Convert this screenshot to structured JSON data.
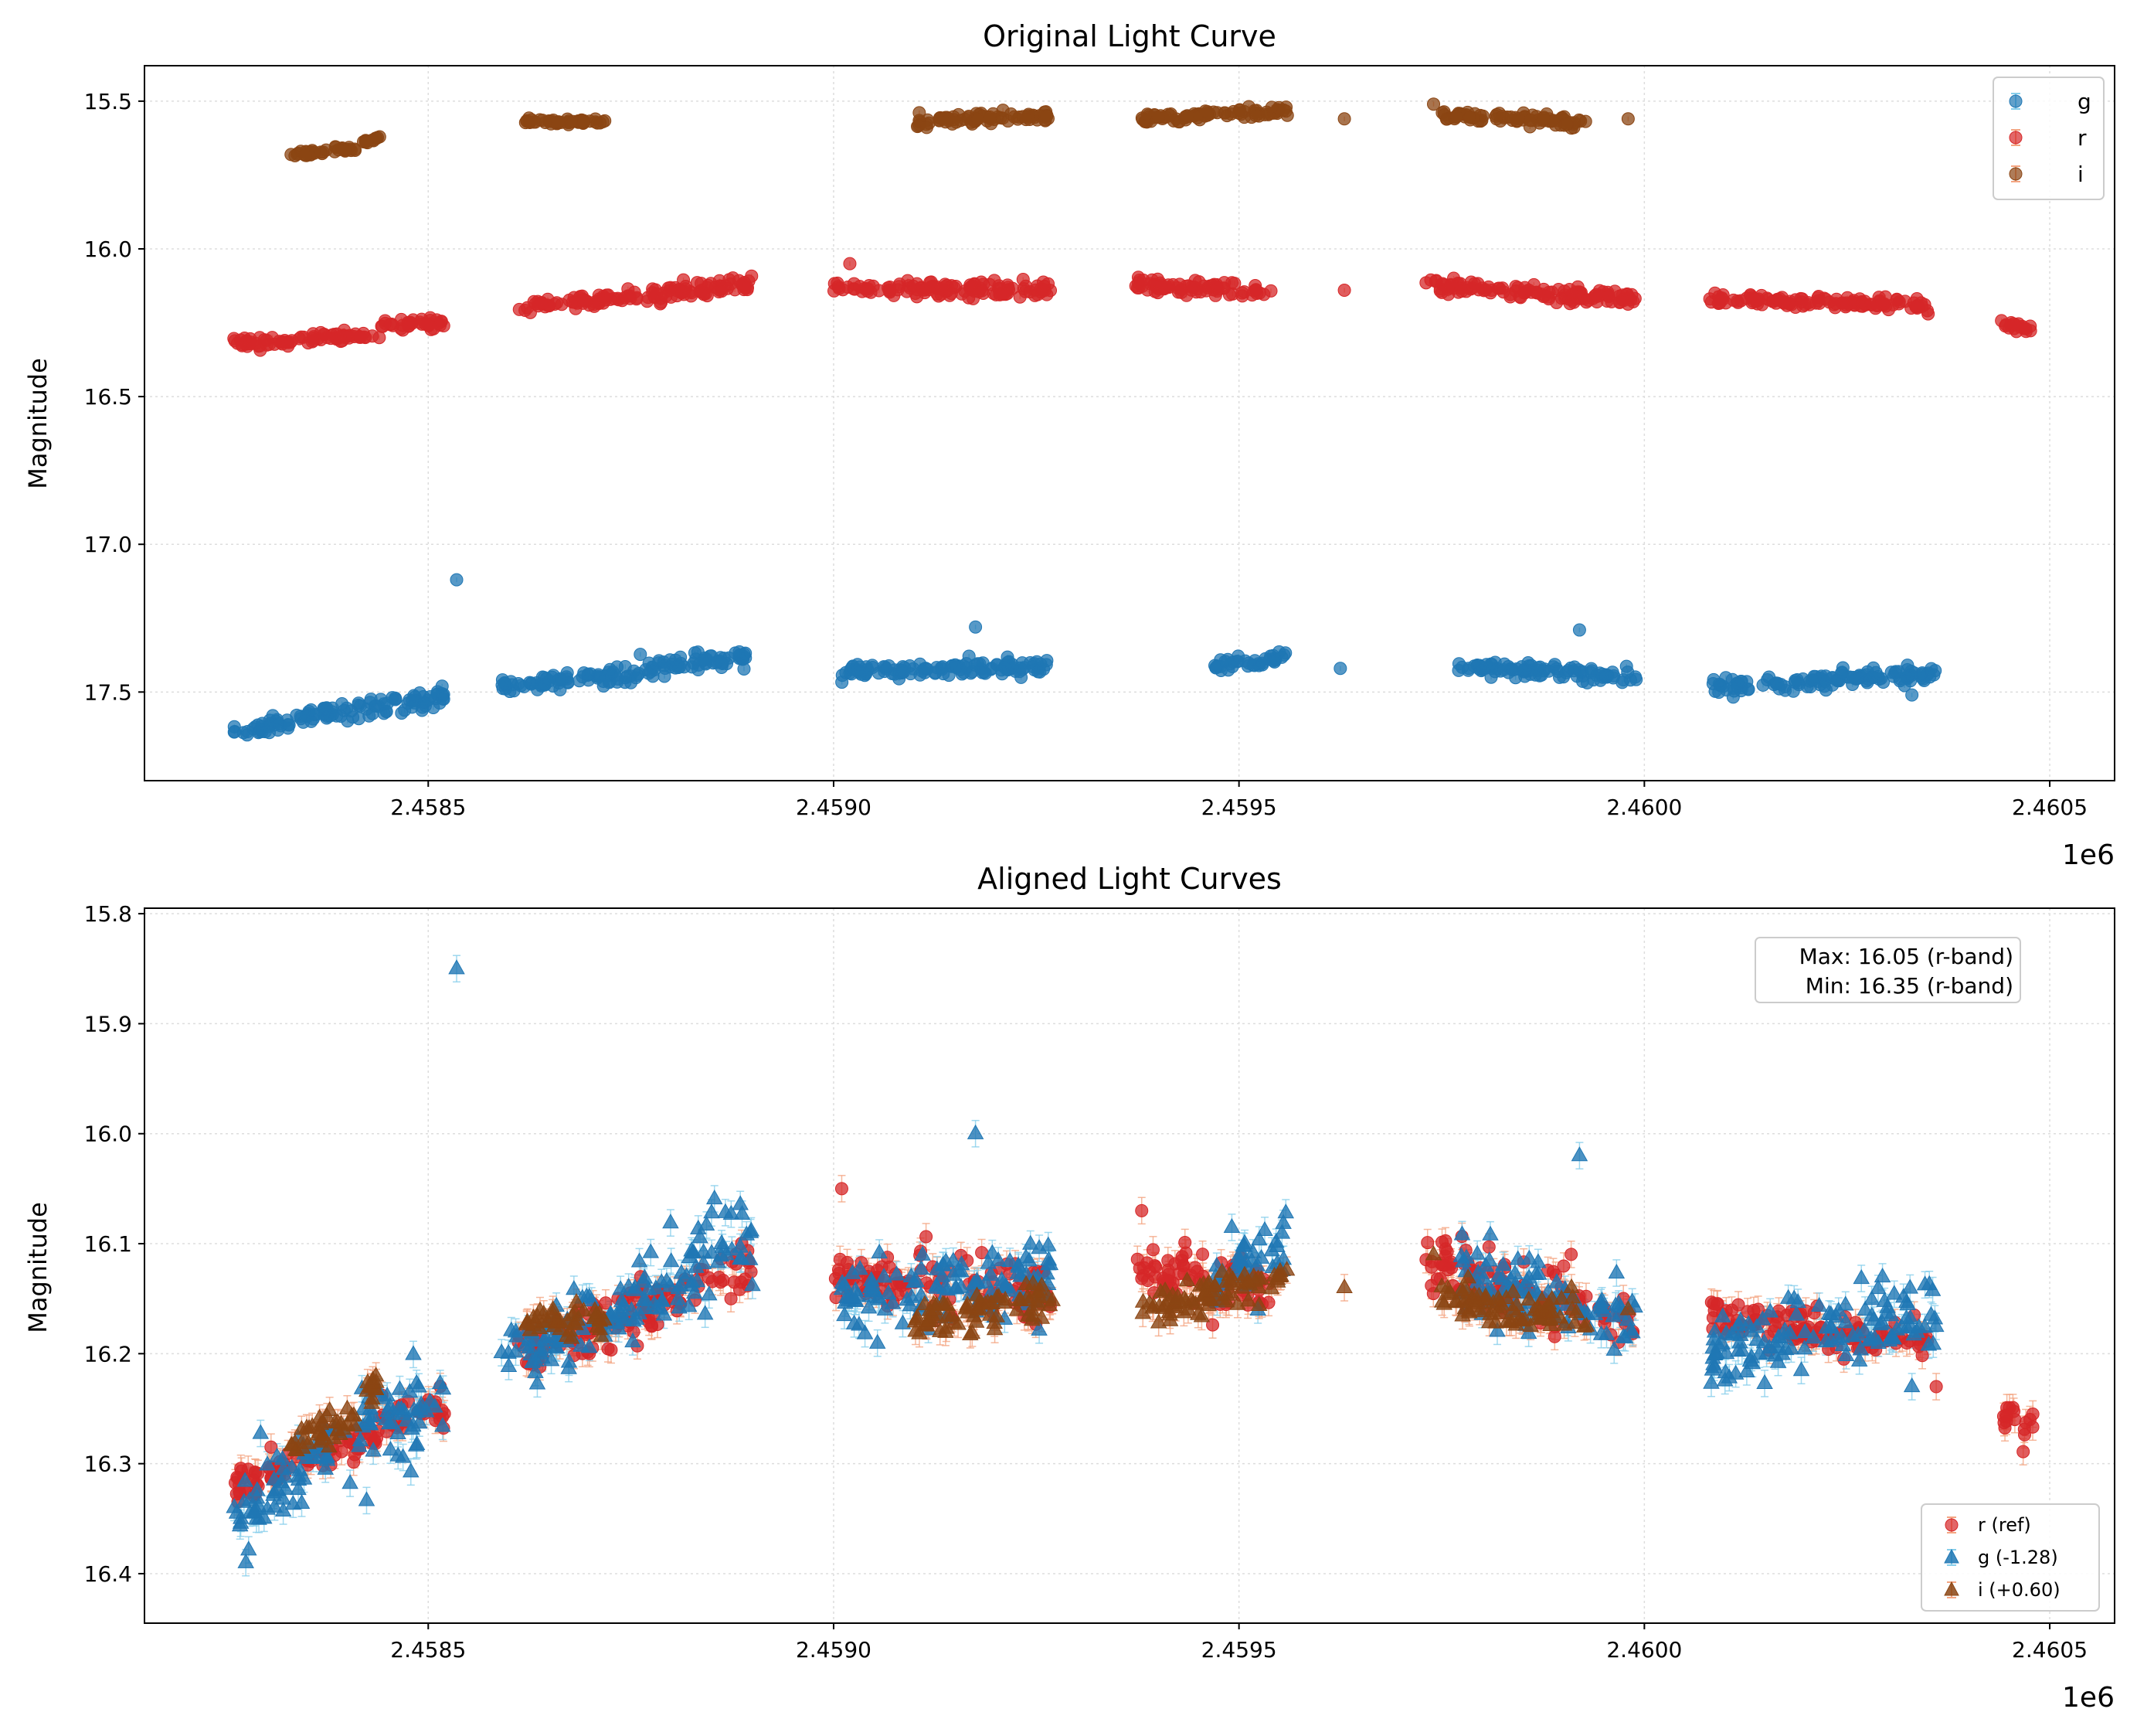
{
  "chart_data": [
    {
      "type": "scatter",
      "title": "Original Light Curve",
      "xlabel": "",
      "ylabel": "Magnitude",
      "x_offset_label": "1e6",
      "xlim": [
        2458150,
        2460580
      ],
      "ylim": [
        17.8,
        15.38
      ],
      "y_inverted": true,
      "grid": true,
      "xticks": [
        2458500,
        2459000,
        2459500,
        2460000,
        2460500
      ],
      "xtick_labels": [
        "2.4585",
        "2.4590",
        "2.4595",
        "2.4600",
        "2.4605"
      ],
      "yticks": [
        15.5,
        16.0,
        16.5,
        17.0,
        17.5
      ],
      "ytick_labels": [
        "15.5",
        "16.0",
        "16.5",
        "17.0",
        "17.5"
      ],
      "legend": {
        "position": "top-right",
        "entries": [
          "g",
          "r",
          "i"
        ]
      },
      "series": [
        {
          "name": "g",
          "marker": "circle",
          "color": "#1f77b4",
          "errcolor": "#87ceeb",
          "segments": [
            [
              2458260,
              2458400,
              17.64,
              17.56,
              0.03
            ],
            [
              2458400,
              2458520,
              17.56,
              17.52,
              0.04
            ],
            [
              2458590,
              2458760,
              17.48,
              17.44,
              0.03
            ],
            [
              2458760,
              2458900,
              17.42,
              17.38,
              0.03
            ],
            [
              2459010,
              2459270,
              17.43,
              17.41,
              0.03
            ],
            [
              2459470,
              2459560,
              17.41,
              17.38,
              0.02
            ],
            [
              2459770,
              2459990,
              17.41,
              17.45,
              0.03
            ],
            [
              2460080,
              2460360,
              17.48,
              17.44,
              0.03
            ]
          ],
          "points": [
            [
              2458535,
              17.12
            ],
            [
              2459175,
              17.28
            ],
            [
              2459625,
              17.42
            ],
            [
              2459920,
              17.29
            ],
            [
              2460330,
              17.51
            ]
          ]
        },
        {
          "name": "r",
          "marker": "circle",
          "color": "#d62728",
          "errcolor": "#f4a582",
          "segments": [
            [
              2458260,
              2458440,
              16.32,
              16.29,
              0.02
            ],
            [
              2458440,
              2458520,
              16.26,
              16.25,
              0.02
            ],
            [
              2458610,
              2458900,
              16.2,
              16.12,
              0.03
            ],
            [
              2459000,
              2459270,
              16.13,
              16.14,
              0.03
            ],
            [
              2459370,
              2459540,
              16.12,
              16.14,
              0.03
            ],
            [
              2459730,
              2459990,
              16.12,
              16.17,
              0.03
            ],
            [
              2460080,
              2460350,
              16.17,
              16.19,
              0.02
            ],
            [
              2460440,
              2460480,
              16.25,
              16.27,
              0.02
            ]
          ],
          "points": [
            [
              2459020,
              16.05
            ],
            [
              2459630,
              16.14
            ],
            [
              2460350,
              16.22
            ]
          ]
        },
        {
          "name": "i",
          "marker": "circle",
          "color": "#8b4513",
          "errcolor": "#f4a582",
          "segments": [
            [
              2458330,
              2458410,
              15.68,
              15.66,
              0.01
            ],
            [
              2458420,
              2458440,
              15.64,
              15.62,
              0.01
            ],
            [
              2458620,
              2458720,
              15.57,
              15.57,
              0.01
            ],
            [
              2459100,
              2459270,
              15.57,
              15.55,
              0.02
            ],
            [
              2459380,
              2459560,
              15.56,
              15.53,
              0.02
            ],
            [
              2459750,
              2459930,
              15.55,
              15.57,
              0.02
            ]
          ],
          "points": [
            [
              2459630,
              15.56
            ],
            [
              2459980,
              15.56
            ],
            [
              2459740,
              15.51
            ]
          ]
        }
      ]
    },
    {
      "type": "scatter",
      "title": "Aligned Light Curves",
      "xlabel": "",
      "ylabel": "Magnitude",
      "x_offset_label": "1e6",
      "xlim": [
        2458150,
        2460580
      ],
      "ylim": [
        16.445,
        15.795
      ],
      "y_inverted": true,
      "grid": true,
      "xticks": [
        2458500,
        2459000,
        2459500,
        2460000,
        2460500
      ],
      "xtick_labels": [
        "2.4585",
        "2.4590",
        "2.4595",
        "2.4600",
        "2.4605"
      ],
      "yticks": [
        15.8,
        15.9,
        16.0,
        16.1,
        16.2,
        16.3,
        16.4
      ],
      "ytick_labels": [
        "15.8",
        "15.9",
        "16.0",
        "16.1",
        "16.2",
        "16.3",
        "16.4"
      ],
      "annotation": [
        "Max: 16.05 (r-band)",
        "Min: 16.35 (r-band)"
      ],
      "legend": {
        "position": "bottom-right",
        "entries": [
          "r (ref)",
          "g (-1.28)",
          "i (+0.60)"
        ]
      },
      "series": [
        {
          "name": "r (ref)",
          "marker": "circle",
          "color": "#d62728",
          "errcolor": "#f4a582",
          "segments": [
            [
              2458260,
              2458440,
              16.32,
              16.27,
              0.02
            ],
            [
              2458440,
              2458520,
              16.26,
              16.25,
              0.02
            ],
            [
              2458610,
              2458900,
              16.2,
              16.12,
              0.03
            ],
            [
              2459000,
              2459270,
              16.13,
              16.14,
              0.03
            ],
            [
              2459370,
              2459540,
              16.12,
              16.14,
              0.03
            ],
            [
              2459730,
              2459990,
              16.12,
              16.17,
              0.03
            ],
            [
              2460080,
              2460350,
              16.17,
              16.19,
              0.02
            ],
            [
              2460440,
              2460480,
              16.25,
              16.27,
              0.02
            ]
          ],
          "points": [
            [
              2459010,
              16.05
            ],
            [
              2459380,
              16.07
            ],
            [
              2460360,
              16.23
            ]
          ]
        },
        {
          "name": "g (-1.28)",
          "marker": "triangle",
          "color": "#1f77b4",
          "errcolor": "#87ceeb",
          "segments": [
            [
              2458260,
              2458400,
              16.35,
              16.28,
              0.04
            ],
            [
              2458400,
              2458520,
              16.28,
              16.24,
              0.05
            ],
            [
              2458590,
              2458760,
              16.2,
              16.16,
              0.04
            ],
            [
              2458760,
              2458900,
              16.14,
              16.1,
              0.04
            ],
            [
              2459010,
              2459270,
              16.15,
              16.13,
              0.04
            ],
            [
              2459470,
              2459560,
              16.13,
              16.1,
              0.03
            ],
            [
              2459770,
              2459990,
              16.13,
              16.17,
              0.04
            ],
            [
              2460080,
              2460360,
              16.2,
              16.16,
              0.04
            ]
          ],
          "points": [
            [
              2458535,
              15.85
            ],
            [
              2459175,
              16.0
            ],
            [
              2459920,
              16.02
            ],
            [
              2460330,
              16.23
            ],
            [
              2458275,
              16.39
            ]
          ]
        },
        {
          "name": "i (+0.60)",
          "marker": "triangle",
          "color": "#8b4513",
          "errcolor": "#f4a582",
          "segments": [
            [
              2458330,
              2458410,
              16.28,
              16.26,
              0.015
            ],
            [
              2458420,
              2458440,
              16.24,
              16.22,
              0.015
            ],
            [
              2458620,
              2458720,
              16.17,
              16.17,
              0.015
            ],
            [
              2459100,
              2459270,
              16.17,
              16.15,
              0.02
            ],
            [
              2459380,
              2459560,
              16.16,
              16.13,
              0.02
            ],
            [
              2459750,
              2459930,
              16.15,
              16.17,
              0.02
            ]
          ],
          "points": [
            [
              2459630,
              16.14
            ],
            [
              2459980,
              16.16
            ],
            [
              2459740,
              16.11
            ]
          ]
        }
      ]
    }
  ]
}
